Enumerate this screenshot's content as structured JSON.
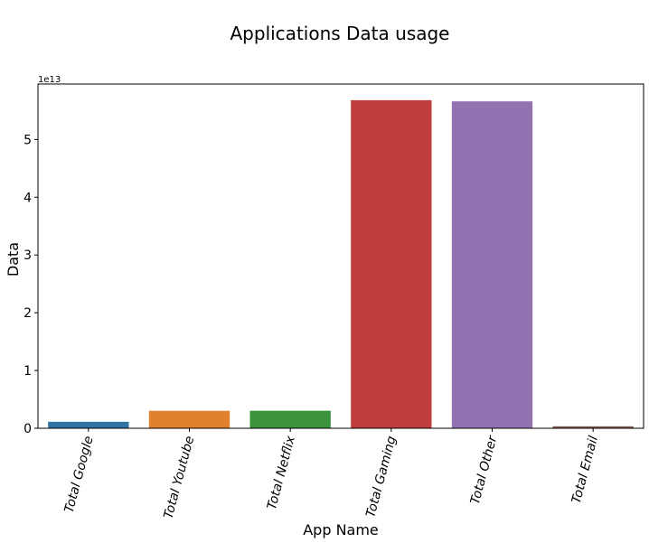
{
  "chart_data": {
    "type": "bar",
    "title": "Applications Data usage",
    "xlabel": "App Name",
    "ylabel": "Data",
    "y_offset_text": "1e13",
    "categories": [
      "Total Google",
      "Total Youtube",
      "Total Netflix",
      "Total Gaming",
      "Total Other",
      "Total Email"
    ],
    "values": [
      1120000000000.0,
      3020000000000.0,
      3030000000000.0,
      56800000000000.0,
      56600000000000.0,
      340000000000.0
    ],
    "colors": [
      "#3274a1",
      "#e1812c",
      "#3a923a",
      "#c03d3e",
      "#9372b2",
      "#845b53"
    ],
    "yticks": [
      "0",
      "1",
      "2",
      "3",
      "4",
      "5"
    ],
    "ytick_values": [
      0,
      10000000000000.0,
      20000000000000.0,
      30000000000000.0,
      40000000000000.0,
      50000000000000.0
    ],
    "ylim": [
      0,
      59600000000000.0
    ],
    "grid": false,
    "legend": "none"
  }
}
